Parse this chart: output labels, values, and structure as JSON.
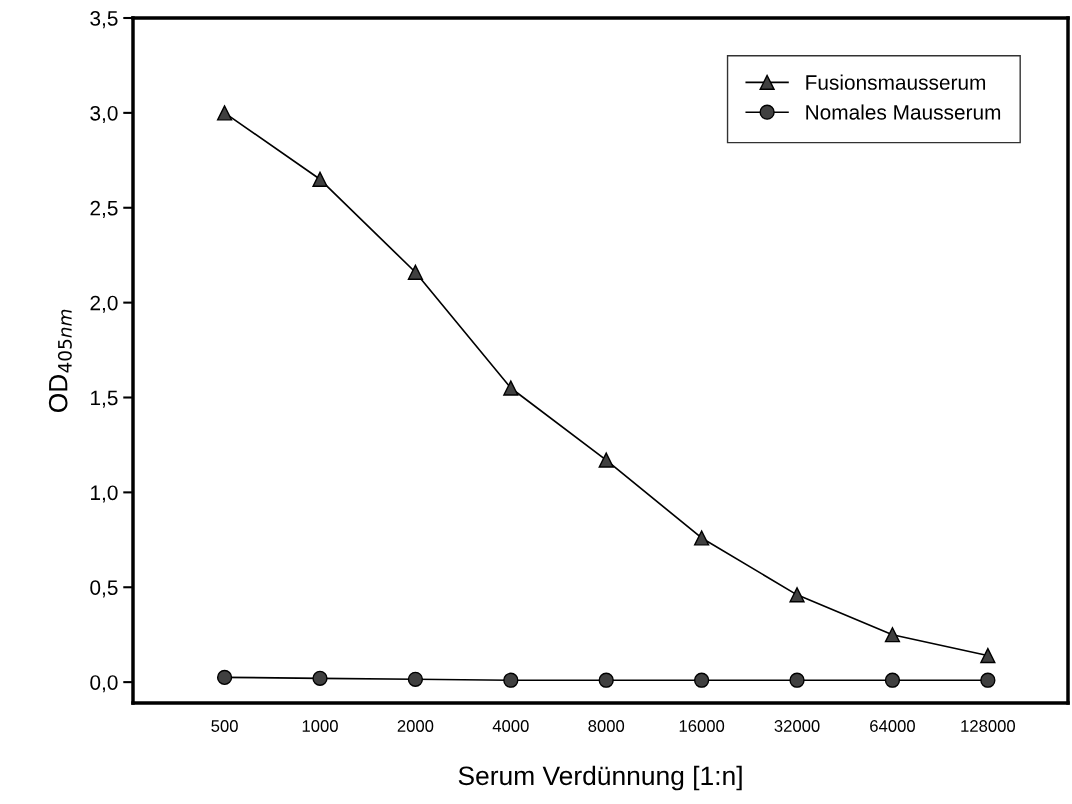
{
  "chart_data": {
    "type": "line",
    "xlabel": "Serum Verdünnung [1:n]",
    "ylabel": "OD$_{405nm}$",
    "categories": [
      "500",
      "1000",
      "2000",
      "4000",
      "8000",
      "16000",
      "32000",
      "64000",
      "128000"
    ],
    "series": [
      {
        "name": "Fusionsmausserum",
        "color": "#000000",
        "marker": "triangle",
        "values": [
          3.0,
          2.65,
          2.16,
          1.55,
          1.17,
          0.76,
          0.46,
          0.25,
          0.14
        ]
      },
      {
        "name": "Nomales Mausserum",
        "color": "#000000",
        "marker": "circle",
        "values": [
          0.025,
          0.02,
          0.015,
          0.01,
          0.01,
          0.01,
          0.01,
          0.01,
          0.01
        ]
      }
    ],
    "ylim": [
      -0.11,
      3.5
    ],
    "yticks": [
      {
        "value": 0,
        "label": "0,0"
      },
      {
        "value": 0.5,
        "label": "0,5"
      },
      {
        "value": 1,
        "label": "1,0"
      },
      {
        "value": 1.5,
        "label": "1,5"
      },
      {
        "value": 2,
        "label": "2,0"
      },
      {
        "value": 2.5,
        "label": "2,5"
      },
      {
        "value": 3,
        "label": "3,0"
      },
      {
        "value": 3.5,
        "label": "3,5"
      }
    ],
    "legend": "top right",
    "grid": false
  }
}
